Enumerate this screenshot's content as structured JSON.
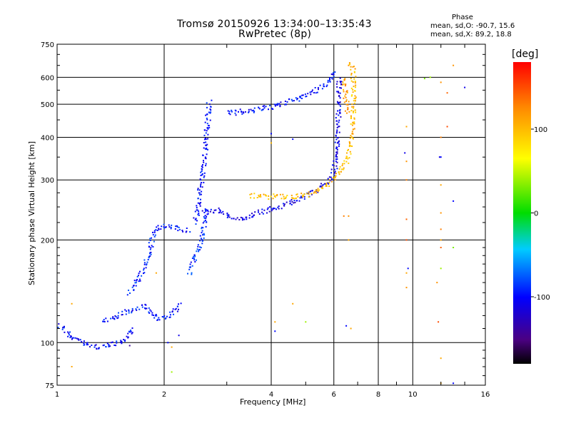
{
  "chart_data": {
    "type": "scatter",
    "title": "Tromsø 20150926 13:34:00–13:35:43",
    "subtitle": "RwPretec (8p)",
    "xlabel": "Frequency [MHz]",
    "ylabel": "Stationary phase Virtual Height [km]",
    "xscale": "log",
    "yscale": "log",
    "xlim": [
      1,
      16
    ],
    "ylim": [
      75,
      750
    ],
    "xticks": [
      1,
      2,
      4,
      6,
      8,
      10,
      16
    ],
    "yticks": [
      75,
      100,
      200,
      300,
      400,
      500,
      600,
      750
    ],
    "grid": true,
    "phase_stats": {
      "heading": "Phase",
      "line_o": "mean, sd,O: -90.7, 15.6",
      "line_x": "mean, sd,X:  89.2, 18.8"
    },
    "colorbar": {
      "label": "[deg]",
      "ticks": [
        100,
        0,
        -100
      ],
      "range": [
        -180,
        180
      ],
      "colormap": "rainbow"
    },
    "traces": [
      {
        "name": "",
        "phase": -100,
        "points": [
          [
            1.02,
            112
          ],
          [
            1.05,
            110
          ],
          [
            1.1,
            103
          ],
          [
            1.2,
            99
          ],
          [
            1.3,
            97
          ],
          [
            1.4,
            98
          ],
          [
            1.5,
            100
          ],
          [
            1.55,
            103
          ],
          [
            1.6,
            107
          ],
          [
            1.65,
            109
          ]
        ]
      },
      {
        "name": "",
        "phase": -95,
        "points": [
          [
            1.35,
            116
          ],
          [
            1.45,
            118
          ],
          [
            1.55,
            122
          ],
          [
            1.65,
            126
          ],
          [
            1.75,
            128
          ],
          [
            1.85,
            122
          ],
          [
            1.95,
            117
          ],
          [
            2.05,
            120
          ],
          [
            2.15,
            124
          ],
          [
            2.25,
            129
          ]
        ]
      },
      {
        "name": "",
        "phase": -95,
        "points": [
          [
            1.6,
            140
          ],
          [
            1.7,
            155
          ],
          [
            1.78,
            172
          ],
          [
            1.82,
            188
          ],
          [
            1.85,
            200
          ],
          [
            1.88,
            210
          ],
          [
            1.95,
            218
          ],
          [
            2.05,
            220
          ],
          [
            2.2,
            216
          ],
          [
            2.35,
            212
          ]
        ]
      },
      {
        "name": "",
        "phase": -100,
        "points": [
          [
            2.45,
            225
          ],
          [
            2.5,
            260
          ],
          [
            2.55,
            300
          ],
          [
            2.6,
            340
          ],
          [
            2.62,
            380
          ],
          [
            2.64,
            420
          ],
          [
            2.66,
            470
          ],
          [
            2.68,
            510
          ]
        ]
      },
      {
        "name": "",
        "phase": -90,
        "points": [
          [
            2.35,
            160
          ],
          [
            2.45,
            180
          ],
          [
            2.55,
            200
          ],
          [
            2.6,
            230
          ],
          [
            2.65,
            250
          ]
        ]
      },
      {
        "name": "",
        "phase": -110,
        "points": [
          [
            2.6,
            240
          ],
          [
            2.8,
            245
          ],
          [
            3.0,
            235
          ],
          [
            3.3,
            228
          ],
          [
            3.6,
            238
          ],
          [
            3.9,
            245
          ],
          [
            4.3,
            252
          ],
          [
            4.7,
            262
          ],
          [
            5.1,
            272
          ],
          [
            5.5,
            285
          ],
          [
            5.8,
            298
          ],
          [
            6.0,
            315
          ],
          [
            6.1,
            345
          ],
          [
            6.15,
            380
          ],
          [
            6.18,
            440
          ],
          [
            6.2,
            520
          ],
          [
            6.22,
            600
          ]
        ]
      },
      {
        "name": "",
        "phase": -100,
        "points": [
          [
            3.0,
            470
          ],
          [
            3.3,
            475
          ],
          [
            3.6,
            480
          ],
          [
            4.0,
            490
          ],
          [
            4.4,
            505
          ],
          [
            4.8,
            520
          ],
          [
            5.2,
            540
          ],
          [
            5.6,
            565
          ],
          [
            5.9,
            595
          ],
          [
            6.05,
            630
          ]
        ]
      },
      {
        "name": "",
        "phase": 100,
        "points": [
          [
            3.5,
            270
          ],
          [
            3.8,
            268
          ],
          [
            4.1,
            268
          ],
          [
            4.4,
            268
          ],
          [
            4.7,
            268
          ],
          [
            5.0,
            270
          ],
          [
            5.3,
            276
          ],
          [
            5.6,
            285
          ],
          [
            5.9,
            298
          ],
          [
            6.2,
            315
          ],
          [
            6.5,
            340
          ],
          [
            6.7,
            380
          ],
          [
            6.8,
            450
          ],
          [
            6.85,
            520
          ],
          [
            6.8,
            620
          ],
          [
            6.7,
            670
          ]
        ]
      },
      {
        "name": "",
        "phase": 110,
        "points": [
          [
            6.4,
            600
          ],
          [
            6.45,
            560
          ],
          [
            6.5,
            520
          ],
          [
            6.55,
            470
          ]
        ]
      }
    ],
    "scattered_points": [
      {
        "x": 1.1,
        "y": 130,
        "phase": 110
      },
      {
        "x": 1.1,
        "y": 85,
        "phase": 110
      },
      {
        "x": 9.6,
        "y": 340,
        "phase": 120
      },
      {
        "x": 9.6,
        "y": 300,
        "phase": 130
      },
      {
        "x": 9.6,
        "y": 230,
        "phase": 140
      },
      {
        "x": 9.6,
        "y": 200,
        "phase": 150
      },
      {
        "x": 9.6,
        "y": 160,
        "phase": 110
      },
      {
        "x": 9.6,
        "y": 145,
        "phase": 120
      },
      {
        "x": 9.6,
        "y": 430,
        "phase": 110
      },
      {
        "x": 9.5,
        "y": 360,
        "phase": -110
      },
      {
        "x": 9.7,
        "y": 165,
        "phase": -100
      },
      {
        "x": 12.0,
        "y": 580,
        "phase": 120
      },
      {
        "x": 12.0,
        "y": 400,
        "phase": 130
      },
      {
        "x": 12.0,
        "y": 350,
        "phase": -100
      },
      {
        "x": 12.0,
        "y": 290,
        "phase": 110
      },
      {
        "x": 12.0,
        "y": 240,
        "phase": 120
      },
      {
        "x": 12.0,
        "y": 215,
        "phase": 130
      },
      {
        "x": 12.0,
        "y": 200,
        "phase": 110
      },
      {
        "x": 12.0,
        "y": 190,
        "phase": 140
      },
      {
        "x": 12.0,
        "y": 165,
        "phase": 40
      },
      {
        "x": 12.0,
        "y": 90,
        "phase": 110
      },
      {
        "x": 12.0,
        "y": 76,
        "phase": 110
      },
      {
        "x": 11.8,
        "y": 115,
        "phase": 150
      },
      {
        "x": 11.7,
        "y": 150,
        "phase": 120
      },
      {
        "x": 11.2,
        "y": 600,
        "phase": 40
      },
      {
        "x": 10.8,
        "y": 595,
        "phase": 30
      },
      {
        "x": 11.9,
        "y": 350,
        "phase": -110
      },
      {
        "x": 12.5,
        "y": 430,
        "phase": 150
      },
      {
        "x": 13.0,
        "y": 650,
        "phase": 120
      },
      {
        "x": 14.0,
        "y": 560,
        "phase": -110
      },
      {
        "x": 13.0,
        "y": 260,
        "phase": -100
      },
      {
        "x": 13.0,
        "y": 190,
        "phase": 30
      },
      {
        "x": 13.0,
        "y": 76,
        "phase": -100
      },
      {
        "x": 12.5,
        "y": 540,
        "phase": 140
      },
      {
        "x": 6.6,
        "y": 200,
        "phase": 110
      },
      {
        "x": 6.6,
        "y": 235,
        "phase": 120
      },
      {
        "x": 6.4,
        "y": 235,
        "phase": 130
      },
      {
        "x": 6.5,
        "y": 112,
        "phase": -100
      },
      {
        "x": 6.7,
        "y": 110,
        "phase": 110
      },
      {
        "x": 6.6,
        "y": 650,
        "phase": 120
      },
      {
        "x": 4.0,
        "y": 410,
        "phase": -100
      },
      {
        "x": 4.0,
        "y": 385,
        "phase": 100
      },
      {
        "x": 4.1,
        "y": 115,
        "phase": 110
      },
      {
        "x": 4.1,
        "y": 108,
        "phase": -100
      },
      {
        "x": 4.6,
        "y": 395,
        "phase": -100
      },
      {
        "x": 5.0,
        "y": 115,
        "phase": 40
      },
      {
        "x": 4.6,
        "y": 130,
        "phase": 110
      },
      {
        "x": 2.05,
        "y": 100,
        "phase": -100
      },
      {
        "x": 2.1,
        "y": 97,
        "phase": 110
      },
      {
        "x": 2.1,
        "y": 82,
        "phase": 40
      },
      {
        "x": 1.9,
        "y": 160,
        "phase": 110
      },
      {
        "x": 2.2,
        "y": 105,
        "phase": -110
      },
      {
        "x": 1.6,
        "y": 98,
        "phase": -140
      }
    ]
  }
}
